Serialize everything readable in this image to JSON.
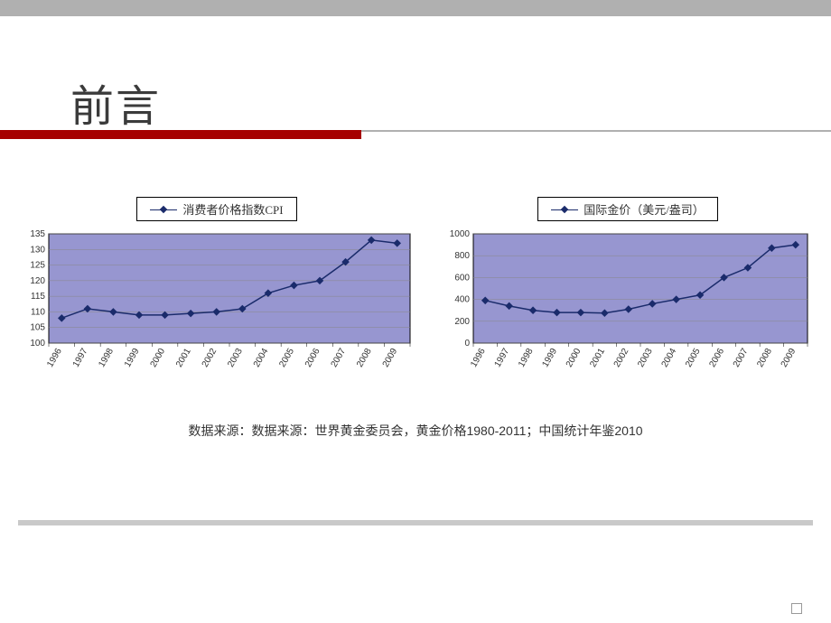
{
  "title": "前言",
  "source_text": "数据来源：数据来源：世界黄金委员会，黄金价格1980-2011；中国统计年鉴2010",
  "colors": {
    "accent_red": "#a60000",
    "chart_fill": "#9796d0",
    "chart_border": "#000000",
    "line_color": "#1a2b6b",
    "marker_color": "#1a2b6b",
    "grid_color": "#888888",
    "axis_text": "#333333",
    "bg": "#ffffff"
  },
  "chart_left": {
    "type": "line",
    "legend_label": "消费者价格指数CPI",
    "categories": [
      "1996",
      "1997",
      "1998",
      "1999",
      "2000",
      "2001",
      "2002",
      "2003",
      "2004",
      "2005",
      "2006",
      "2007",
      "2008",
      "2009"
    ],
    "values": [
      108,
      111,
      110,
      109,
      109,
      109.5,
      110,
      111,
      116,
      118.5,
      120,
      126,
      133,
      132
    ],
    "ylim": [
      100,
      135
    ],
    "ytick_step": 5,
    "grid": true,
    "plot_bg": "#9796d0",
    "line_color": "#1a2b6b",
    "marker": "diamond",
    "marker_size": 5,
    "line_width": 1.5,
    "label_fontsize": 10,
    "xlabel_rotation": -60
  },
  "chart_right": {
    "type": "line",
    "legend_label": "国际金价（美元/盎司）",
    "categories": [
      "1996",
      "1997",
      "1998",
      "1999",
      "2000",
      "2001",
      "2002",
      "2003",
      "2004",
      "2005",
      "2006",
      "2007",
      "2008",
      "2009"
    ],
    "values": [
      390,
      340,
      300,
      280,
      280,
      275,
      310,
      360,
      400,
      440,
      600,
      690,
      870,
      900
    ],
    "ylim": [
      0,
      1000
    ],
    "ytick_step": 200,
    "grid": true,
    "plot_bg": "#9796d0",
    "line_color": "#1a2b6b",
    "marker": "diamond",
    "marker_size": 5,
    "line_width": 1.5,
    "label_fontsize": 10,
    "xlabel_rotation": -60
  }
}
